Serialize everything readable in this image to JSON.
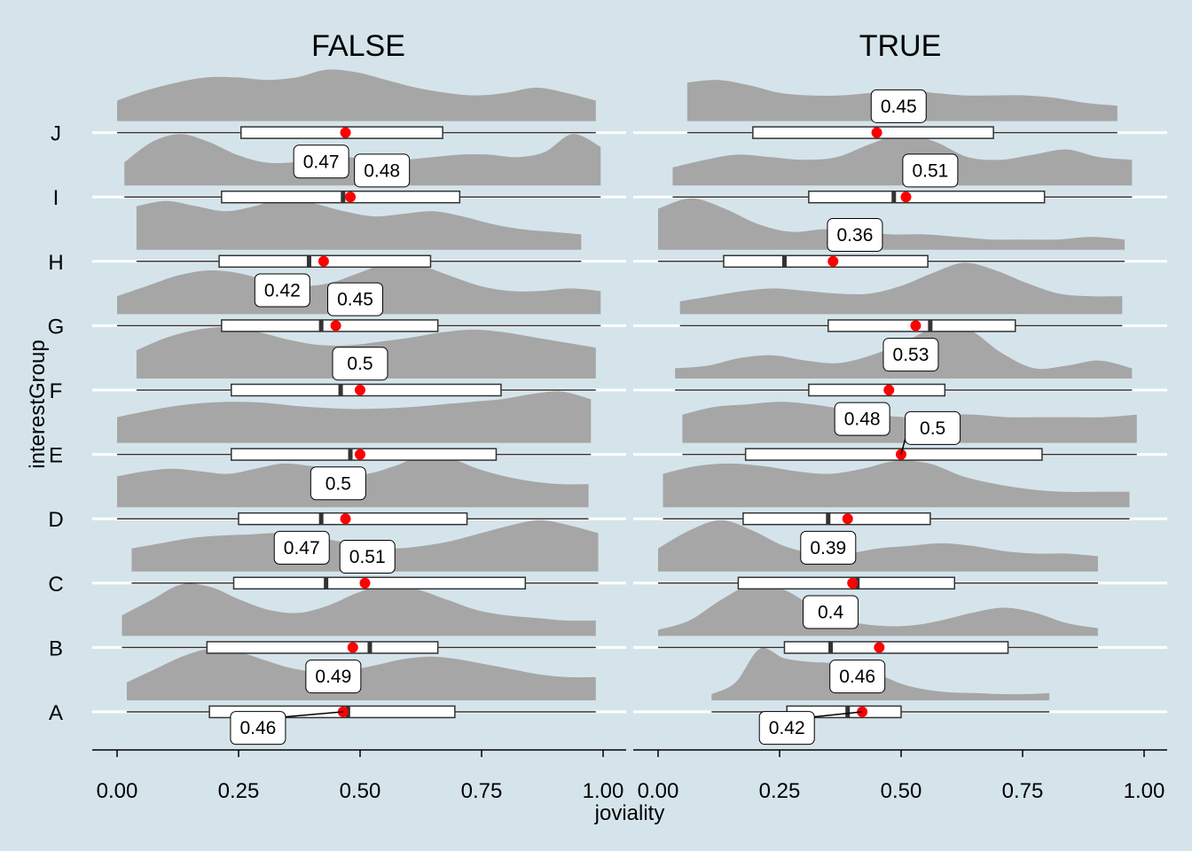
{
  "chart_data": {
    "type": "raincloud",
    "xlabel": "joviality",
    "ylabel": "interestGroup",
    "xlim": [
      0,
      1
    ],
    "xticks": [
      "0.00",
      "0.25",
      "0.50",
      "0.75",
      "1.00"
    ],
    "categories": [
      "A",
      "B",
      "C",
      "D",
      "E",
      "F",
      "G",
      "H",
      "I",
      "J"
    ],
    "colors": {
      "density": "#a6a6a6",
      "mean": "#ff0000",
      "background": "#d5e4eb",
      "gridline": "#ffffff",
      "box": "#ffffff",
      "outline": "#333333"
    },
    "panels": [
      {
        "facet": "FALSE",
        "groups": [
          {
            "group": "A",
            "min": 0.02,
            "q1": 0.19,
            "median": 0.475,
            "q3": 0.695,
            "max": 0.985,
            "mean": 0.465,
            "density": [
              0.35,
              0.6,
              0.85,
              1.0,
              0.95,
              0.78,
              0.62,
              0.55,
              0.58,
              0.68,
              0.8,
              0.85,
              0.8,
              0.7,
              0.6,
              0.5,
              0.45,
              0.45
            ]
          },
          {
            "group": "B",
            "min": 0.01,
            "q1": 0.185,
            "median": 0.52,
            "q3": 0.66,
            "max": 0.985,
            "mean": 0.485,
            "density": [
              0.4,
              0.7,
              1.0,
              0.95,
              0.7,
              0.5,
              0.45,
              0.6,
              0.85,
              1.0,
              0.9,
              0.7,
              0.5,
              0.4,
              0.35,
              0.3,
              0.3
            ]
          },
          {
            "group": "C",
            "min": 0.03,
            "q1": 0.24,
            "median": 0.43,
            "q3": 0.84,
            "max": 0.99,
            "mean": 0.51,
            "density": [
              0.45,
              0.55,
              0.65,
              0.7,
              0.72,
              0.75,
              0.7,
              0.6,
              0.5,
              0.45,
              0.5,
              0.6,
              0.75,
              0.9,
              1.0,
              0.9,
              0.75
            ]
          },
          {
            "group": "D",
            "min": 0.0,
            "q1": 0.25,
            "median": 0.42,
            "q3": 0.72,
            "max": 0.97,
            "mean": 0.47,
            "density": [
              0.6,
              0.7,
              0.75,
              0.7,
              0.65,
              0.75,
              0.85,
              0.8,
              0.7,
              0.65,
              0.8,
              1.0,
              0.95,
              0.75,
              0.6,
              0.5,
              0.45,
              0.45
            ]
          },
          {
            "group": "E",
            "min": 0.0,
            "q1": 0.235,
            "median": 0.48,
            "q3": 0.78,
            "max": 0.975,
            "mean": 0.5,
            "density": [
              0.5,
              0.62,
              0.72,
              0.78,
              0.8,
              0.78,
              0.72,
              0.68,
              0.66,
              0.67,
              0.7,
              0.75,
              0.8,
              0.85,
              0.95,
              1.0,
              0.85
            ]
          },
          {
            "group": "F",
            "min": 0.04,
            "q1": 0.235,
            "median": 0.46,
            "q3": 0.79,
            "max": 0.985,
            "mean": 0.5,
            "density": [
              0.55,
              0.8,
              0.95,
              1.0,
              0.9,
              0.75,
              0.65,
              0.65,
              0.72,
              0.8,
              0.9,
              0.95,
              0.9,
              0.8,
              0.7,
              0.6
            ]
          },
          {
            "group": "G",
            "min": 0.0,
            "q1": 0.215,
            "median": 0.42,
            "q3": 0.66,
            "max": 0.995,
            "mean": 0.45,
            "density": [
              0.35,
              0.55,
              0.75,
              0.85,
              0.8,
              0.65,
              0.55,
              0.6,
              0.8,
              1.0,
              0.95,
              0.75,
              0.55,
              0.45,
              0.45,
              0.5,
              0.45
            ]
          },
          {
            "group": "H",
            "min": 0.04,
            "q1": 0.21,
            "median": 0.395,
            "q3": 0.645,
            "max": 0.955,
            "mean": 0.425,
            "density": [
              0.85,
              0.95,
              0.85,
              0.75,
              0.85,
              1.0,
              0.9,
              0.75,
              0.65,
              0.7,
              0.75,
              0.65,
              0.5,
              0.4,
              0.35,
              0.3
            ]
          },
          {
            "group": "I",
            "min": 0.015,
            "q1": 0.215,
            "median": 0.465,
            "q3": 0.705,
            "max": 0.995,
            "mean": 0.48,
            "density": [
              0.45,
              0.85,
              1.0,
              0.85,
              0.6,
              0.45,
              0.45,
              0.55,
              0.55,
              0.5,
              0.5,
              0.55,
              0.6,
              0.6,
              0.55,
              0.65,
              1.0,
              0.75
            ]
          },
          {
            "group": "J",
            "min": 0.0,
            "q1": 0.255,
            "median": 0.47,
            "q3": 0.67,
            "max": 0.985,
            "mean": 0.47,
            "density": [
              0.4,
              0.6,
              0.75,
              0.85,
              0.85,
              0.8,
              0.85,
              1.0,
              0.95,
              0.8,
              0.65,
              0.55,
              0.5,
              0.55,
              0.65,
              0.55,
              0.4
            ]
          }
        ],
        "labels": [
          {
            "text": "0.46",
            "x": 0.29,
            "group": "A",
            "offset": -0.25,
            "leader": {
              "x": 0.465,
              "group": "A"
            }
          },
          {
            "text": "0.49",
            "x": 0.445,
            "group": "A",
            "offset": 0.55
          },
          {
            "text": "0.47",
            "x": 0.38,
            "group": "C",
            "offset": 0.55
          },
          {
            "text": "0.51",
            "x": 0.515,
            "group": "C",
            "offset": 0.41
          },
          {
            "text": "0.5",
            "x": 0.455,
            "group": "D",
            "offset": 0.55
          },
          {
            "text": "0.5",
            "x": 0.5,
            "group": "F",
            "offset": 0.41
          },
          {
            "text": "0.42",
            "x": 0.34,
            "group": "G",
            "offset": 0.55
          },
          {
            "text": "0.45",
            "x": 0.49,
            "group": "G",
            "offset": 0.41
          },
          {
            "text": "0.47",
            "x": 0.42,
            "group": "I",
            "offset": 0.55
          },
          {
            "text": "0.48",
            "x": 0.545,
            "group": "I",
            "offset": 0.41
          }
        ]
      },
      {
        "facet": "TRUE",
        "groups": [
          {
            "group": "A",
            "min": 0.11,
            "q1": 0.265,
            "median": 0.39,
            "q3": 0.5,
            "max": 0.805,
            "mean": 0.42,
            "density": [
              0.12,
              0.35,
              1.0,
              0.82,
              0.75,
              0.72,
              0.6,
              0.48,
              0.3,
              0.2,
              0.15,
              0.14,
              0.12,
              0.12,
              0.14
            ]
          },
          {
            "group": "B",
            "min": 0.0,
            "q1": 0.26,
            "median": 0.355,
            "q3": 0.72,
            "max": 0.905,
            "mean": 0.455,
            "density": [
              0.12,
              0.3,
              0.7,
              1.0,
              0.9,
              0.55,
              0.3,
              0.2,
              0.2,
              0.3,
              0.45,
              0.55,
              0.45,
              0.25,
              0.15
            ]
          },
          {
            "group": "C",
            "min": 0.0,
            "q1": 0.165,
            "median": 0.41,
            "q3": 0.61,
            "max": 0.905,
            "mean": 0.4,
            "density": [
              0.45,
              0.8,
              1.0,
              0.8,
              0.5,
              0.35,
              0.35,
              0.45,
              0.5,
              0.55,
              0.5,
              0.4,
              0.35,
              0.35,
              0.3
            ]
          },
          {
            "group": "D",
            "min": 0.01,
            "q1": 0.175,
            "median": 0.35,
            "q3": 0.56,
            "max": 0.97,
            "mean": 0.39,
            "density": [
              0.65,
              0.8,
              0.85,
              0.8,
              0.7,
              0.65,
              0.75,
              0.9,
              0.85,
              0.6,
              0.45,
              0.35,
              0.3,
              0.3,
              0.3
            ]
          },
          {
            "group": "E",
            "min": 0.05,
            "q1": 0.18,
            "median": 0.5,
            "q3": 0.79,
            "max": 0.985,
            "mean": 0.5,
            "density": [
              0.55,
              0.7,
              0.75,
              0.8,
              0.75,
              0.65,
              0.55,
              0.5,
              0.55,
              0.55,
              0.5,
              0.5,
              0.5,
              0.5,
              0.55
            ]
          },
          {
            "group": "F",
            "min": 0.035,
            "q1": 0.31,
            "median": 0.475,
            "q3": 0.59,
            "max": 0.975,
            "mean": 0.475,
            "density": [
              0.2,
              0.25,
              0.4,
              0.45,
              0.35,
              0.3,
              0.45,
              0.7,
              1.0,
              0.95,
              0.5,
              0.2,
              0.25,
              0.35,
              0.2
            ]
          },
          {
            "group": "G",
            "min": 0.045,
            "q1": 0.35,
            "median": 0.56,
            "q3": 0.735,
            "max": 0.955,
            "mean": 0.53,
            "density": [
              0.25,
              0.35,
              0.45,
              0.5,
              0.45,
              0.4,
              0.4,
              0.55,
              0.8,
              1.0,
              0.85,
              0.6,
              0.4,
              0.35,
              0.35
            ]
          },
          {
            "group": "H",
            "min": 0.0,
            "q1": 0.135,
            "median": 0.26,
            "q3": 0.555,
            "max": 0.96,
            "mean": 0.36,
            "density": [
              0.8,
              1.0,
              0.8,
              0.5,
              0.35,
              0.4,
              0.35,
              0.3,
              0.3,
              0.25,
              0.2,
              0.2,
              0.2,
              0.25,
              0.2
            ]
          },
          {
            "group": "I",
            "min": 0.03,
            "q1": 0.31,
            "median": 0.485,
            "q3": 0.795,
            "max": 0.975,
            "mean": 0.51,
            "density": [
              0.35,
              0.5,
              0.6,
              0.55,
              0.5,
              0.55,
              0.8,
              1.0,
              0.85,
              0.55,
              0.5,
              0.6,
              0.7,
              0.55,
              0.5
            ]
          },
          {
            "group": "J",
            "min": 0.06,
            "q1": 0.195,
            "median": 0.45,
            "q3": 0.69,
            "max": 0.945,
            "mean": 0.45,
            "density": [
              0.75,
              0.8,
              0.7,
              0.55,
              0.5,
              0.5,
              0.55,
              0.6,
              0.55,
              0.5,
              0.5,
              0.5,
              0.45,
              0.35,
              0.3
            ]
          }
        ],
        "labels": [
          {
            "text": "0.42",
            "x": 0.265,
            "group": "A",
            "offset": -0.25,
            "leader": {
              "x": 0.42,
              "group": "A"
            }
          },
          {
            "text": "0.46",
            "x": 0.41,
            "group": "A",
            "offset": 0.55
          },
          {
            "text": "0.4",
            "x": 0.355,
            "group": "B",
            "offset": 0.55
          },
          {
            "text": "0.39",
            "x": 0.35,
            "group": "C",
            "offset": 0.55
          },
          {
            "text": "0.48",
            "x": 0.42,
            "group": "E",
            "offset": 0.55
          },
          {
            "text": "0.5",
            "x": 0.565,
            "group": "E",
            "offset": 0.41,
            "leader": {
              "x": 0.5,
              "group": "E"
            }
          },
          {
            "text": "0.53",
            "x": 0.52,
            "group": "F",
            "offset": 0.55
          },
          {
            "text": "0.36",
            "x": 0.405,
            "group": "H",
            "offset": 0.41
          },
          {
            "text": "0.51",
            "x": 0.56,
            "group": "I",
            "offset": 0.41
          },
          {
            "text": "0.45",
            "x": 0.495,
            "group": "J",
            "offset": 0.41
          }
        ]
      }
    ]
  }
}
